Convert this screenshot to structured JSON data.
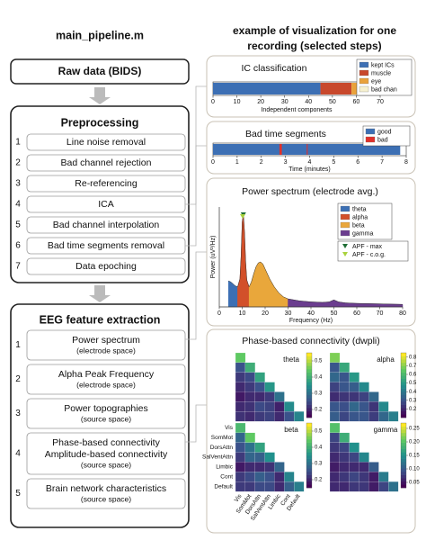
{
  "left": {
    "title": "main_pipeline.m",
    "raw_data": "Raw data (BIDS)",
    "preprocessing": {
      "title": "Preprocessing",
      "steps": [
        {
          "n": "1",
          "label": "Line noise removal"
        },
        {
          "n": "2",
          "label": "Bad channel rejection"
        },
        {
          "n": "3",
          "label": "Re-referencing"
        },
        {
          "n": "4",
          "label": "ICA"
        },
        {
          "n": "5",
          "label": "Bad channel interpolation"
        },
        {
          "n": "6",
          "label": "Bad time segments removal"
        },
        {
          "n": "7",
          "label": "Data epoching"
        }
      ]
    },
    "features": {
      "title": "EEG feature extraction",
      "steps": [
        {
          "n": "1",
          "lines": [
            "Power spectrum"
          ],
          "note": "(electrode space)"
        },
        {
          "n": "2",
          "lines": [
            "Alpha Peak Frequency"
          ],
          "note": "(electrode space)"
        },
        {
          "n": "3",
          "lines": [
            "Power topographies"
          ],
          "note": "(source space)"
        },
        {
          "n": "4",
          "lines": [
            "Phase-based connectivity",
            "Amplitude-based connectivity"
          ],
          "note": "(source space)"
        },
        {
          "n": "5",
          "lines": [
            "Brain network characteristics"
          ],
          "note": "(source space)"
        }
      ]
    }
  },
  "right_title": [
    "example of visualization for one",
    "recording (selected steps)"
  ],
  "chart_data": [
    {
      "type": "stacked-hbar",
      "title": "IC classification",
      "xlabel": "Independent components",
      "xlim": [
        0,
        70
      ],
      "xticks": [
        0,
        10,
        20,
        30,
        40,
        50,
        60,
        70
      ],
      "series": [
        {
          "name": "kept ICs",
          "color": "#3c6fb4",
          "values": [
            45
          ]
        },
        {
          "name": "muscle",
          "color": "#c8482c",
          "values": [
            13
          ]
        },
        {
          "name": "eye",
          "color": "#e9a23b",
          "values": [
            3
          ]
        },
        {
          "name": "bad chan",
          "color": "#f6f1cf",
          "values": [
            1
          ]
        }
      ]
    },
    {
      "type": "segments",
      "title": "Bad time segments",
      "xlabel": "Time (minutes)",
      "xlim": [
        0,
        8
      ],
      "xticks": [
        0,
        1,
        2,
        3,
        4,
        5,
        6,
        7,
        8
      ],
      "series": [
        {
          "name": "good",
          "color": "#3c6fb4",
          "values": [
            [
              0,
              7.75
            ]
          ]
        },
        {
          "name": "bad",
          "color": "#e0302a",
          "values": [
            [
              2.75,
              2.85
            ],
            [
              3.88,
              3.92
            ]
          ]
        }
      ]
    },
    {
      "type": "spectrum",
      "title": "Power spectrum (electrode avg.)",
      "xlabel": "Frequency (Hz)",
      "ylabel": "Power (uV²/Hz)",
      "xlim": [
        0,
        80
      ],
      "xticks": [
        0,
        10,
        20,
        30,
        40,
        50,
        60,
        70,
        80
      ],
      "ylim": [
        0,
        1
      ],
      "x": [
        4,
        5,
        6,
        7,
        8,
        9,
        9.5,
        10,
        10.5,
        11,
        11.5,
        12,
        13,
        14,
        15,
        16,
        17,
        18,
        19,
        20,
        22,
        24,
        26,
        28,
        30,
        35,
        40,
        45,
        48,
        50,
        52,
        55,
        60,
        70,
        80
      ],
      "values": [
        0.26,
        0.25,
        0.23,
        0.21,
        0.2,
        0.28,
        0.5,
        0.85,
        0.93,
        0.75,
        0.45,
        0.27,
        0.2,
        0.25,
        0.33,
        0.4,
        0.44,
        0.45,
        0.43,
        0.38,
        0.28,
        0.2,
        0.14,
        0.1,
        0.08,
        0.06,
        0.05,
        0.045,
        0.05,
        0.07,
        0.05,
        0.04,
        0.035,
        0.03,
        0.025
      ],
      "bands": [
        {
          "name": "theta",
          "color": "#3c6fb4",
          "range": [
            4,
            8
          ]
        },
        {
          "name": "alpha",
          "color": "#d2502a",
          "range": [
            8,
            13
          ]
        },
        {
          "name": "beta",
          "color": "#e9a73b",
          "range": [
            13,
            30
          ]
        },
        {
          "name": "gamma",
          "color": "#6b3d8f",
          "range": [
            30,
            80
          ]
        }
      ],
      "apf": [
        {
          "name": "APF - max",
          "color": "#1f6e35",
          "x": 10.5
        },
        {
          "name": "APF - c.o.g.",
          "color": "#a9d23d",
          "x": 10.2
        }
      ]
    },
    {
      "type": "heatmap",
      "title": "Phase-based connectivity (dwpli)",
      "labels": [
        "Vis",
        "SomMot",
        "DorsAttn",
        "SalVentAttn",
        "Limbic",
        "Cont",
        "Default"
      ],
      "panels": [
        {
          "name": "theta",
          "clim": [
            0.15,
            0.55
          ],
          "ticks": [
            0.2,
            0.3,
            0.4,
            0.5
          ],
          "values": [
            [
              0.45
            ],
            [
              0.25,
              0.4
            ],
            [
              0.22,
              0.24,
              0.38
            ],
            [
              0.2,
              0.22,
              0.25,
              0.36
            ],
            [
              0.18,
              0.2,
              0.2,
              0.22,
              0.3
            ],
            [
              0.2,
              0.21,
              0.24,
              0.23,
              0.19,
              0.34
            ],
            [
              0.21,
              0.2,
              0.22,
              0.23,
              0.2,
              0.25,
              0.33
            ]
          ]
        },
        {
          "name": "alpha",
          "clim": [
            0.1,
            0.85
          ],
          "ticks": [
            0.2,
            0.3,
            0.4,
            0.5,
            0.6,
            0.7,
            0.8
          ],
          "values": [
            [
              0.7
            ],
            [
              0.3,
              0.55
            ],
            [
              0.35,
              0.3,
              0.5
            ],
            [
              0.25,
              0.3,
              0.32,
              0.45
            ],
            [
              0.2,
              0.22,
              0.22,
              0.25,
              0.35
            ],
            [
              0.3,
              0.28,
              0.35,
              0.3,
              0.22,
              0.45
            ],
            [
              0.32,
              0.26,
              0.3,
              0.3,
              0.24,
              0.35,
              0.42
            ]
          ]
        },
        {
          "name": "beta",
          "clim": [
            0.15,
            0.55
          ],
          "ticks": [
            0.2,
            0.3,
            0.4,
            0.5
          ],
          "values": [
            [
              0.42
            ],
            [
              0.28,
              0.45
            ],
            [
              0.25,
              0.3,
              0.38
            ],
            [
              0.22,
              0.28,
              0.27,
              0.35
            ],
            [
              0.18,
              0.2,
              0.2,
              0.21,
              0.28
            ],
            [
              0.22,
              0.24,
              0.27,
              0.25,
              0.2,
              0.33
            ],
            [
              0.22,
              0.22,
              0.24,
              0.24,
              0.2,
              0.27,
              0.32
            ]
          ]
        },
        {
          "name": "gamma",
          "clim": [
            0.03,
            0.27
          ],
          "ticks": [
            0.05,
            {
              "value": 0.1,
              "label": "0.10"
            },
            0.15,
            {
              "value": 0.2,
              "label": "0.20"
            },
            0.25
          ],
          "values": [
            [
              0.2
            ],
            [
              0.08,
              0.18
            ],
            [
              0.07,
              0.08,
              0.15
            ],
            [
              0.06,
              0.07,
              0.08,
              0.14
            ],
            [
              0.05,
              0.06,
              0.06,
              0.06,
              0.1
            ],
            [
              0.06,
              0.07,
              0.08,
              0.07,
              0.05,
              0.13
            ],
            [
              0.06,
              0.06,
              0.07,
              0.07,
              0.05,
              0.08,
              0.12
            ]
          ]
        }
      ]
    }
  ]
}
